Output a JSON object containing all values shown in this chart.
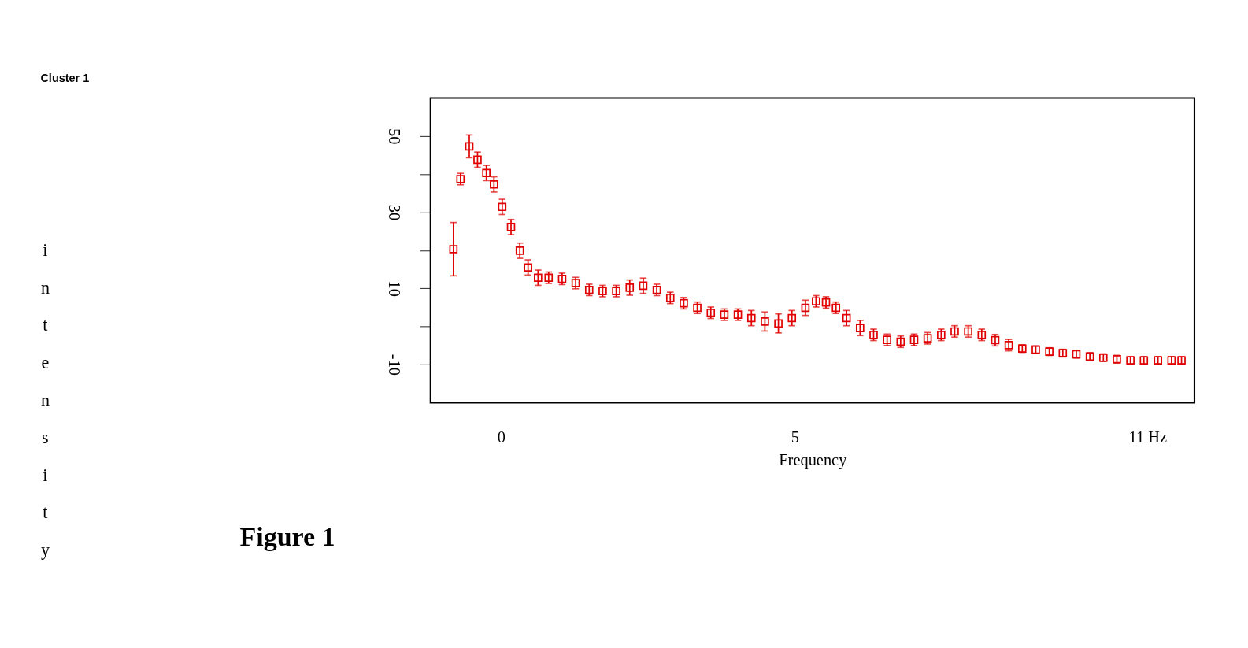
{
  "chart_data": {
    "type": "scatter",
    "title": "Cluster 1",
    "xlabel": "Frequency",
    "ylabel": "intensity",
    "x": [
      -0.81,
      -0.69,
      -0.54,
      -0.4,
      -0.25,
      -0.12,
      0.02,
      0.17,
      0.32,
      0.46,
      0.63,
      0.81,
      1.04,
      1.27,
      1.5,
      1.73,
      1.96,
      2.19,
      2.42,
      2.65,
      2.88,
      3.11,
      3.34,
      3.57,
      3.8,
      4.03,
      4.26,
      4.49,
      4.72,
      4.95,
      5.18,
      5.36,
      5.53,
      5.7,
      5.88,
      6.11,
      6.34,
      6.57,
      6.8,
      7.03,
      7.26,
      7.49,
      7.72,
      7.95,
      8.18,
      8.41,
      8.64,
      8.87,
      9.1,
      9.33,
      9.56,
      9.79,
      10.02,
      10.25,
      10.48,
      10.71,
      10.94,
      11.18,
      11.41,
      11.58
    ],
    "series": [
      {
        "color": "#e00000",
        "values": [
          20.3,
          38.7,
          47.3,
          43.8,
          40.3,
          37.3,
          31.4,
          26.1,
          19.9,
          15.5,
          12.8,
          12.8,
          12.5,
          11.4,
          9.6,
          9.3,
          9.3,
          10.2,
          10.7,
          9.6,
          7.5,
          6.1,
          4.9,
          3.6,
          3.1,
          3.1,
          2.2,
          1.3,
          0.8,
          2.2,
          4.9,
          6.6,
          6.3,
          4.9,
          2.2,
          -0.4,
          -2.2,
          -3.5,
          -4.0,
          -3.5,
          -3.1,
          -2.2,
          -1.3,
          -1.3,
          -2.2,
          -3.6,
          -4.9,
          -5.8,
          -6.1,
          -6.6,
          -7.0,
          -7.3,
          -7.9,
          -8.2,
          -8.6,
          -8.9,
          -8.9,
          -8.9,
          -8.9,
          -8.9
        ],
        "errors": [
          7,
          1.5,
          3,
          2,
          2,
          2,
          2,
          2,
          2,
          2,
          2,
          1.5,
          1.5,
          1.5,
          1.5,
          1.5,
          1.5,
          2,
          2,
          1.5,
          1.5,
          1.5,
          1.5,
          1.5,
          1.5,
          1.5,
          2,
          2.5,
          2.5,
          2,
          2,
          1.5,
          1.5,
          1.5,
          2,
          2,
          1.5,
          1.5,
          1.5,
          1.5,
          1.5,
          1.5,
          1.5,
          1.5,
          1.5,
          1.5,
          1.5,
          1,
          1,
          1,
          1,
          1,
          1,
          1,
          1,
          1,
          1,
          1,
          1,
          1
        ]
      }
    ],
    "marker": "square",
    "grid": false,
    "xlim": [
      -1.2,
      11.8
    ],
    "xticks": [
      0,
      5,
      {
        "value": 11,
        "label": "11   Hz"
      }
    ],
    "ylim": [
      -20,
      60
    ],
    "yticks": [
      50,
      {
        "value": 40,
        "label": null
      },
      30,
      {
        "value": 20,
        "label": null
      },
      10,
      {
        "value": 0,
        "label": null
      },
      -10
    ],
    "annotations": [
      "Figure 1"
    ]
  }
}
